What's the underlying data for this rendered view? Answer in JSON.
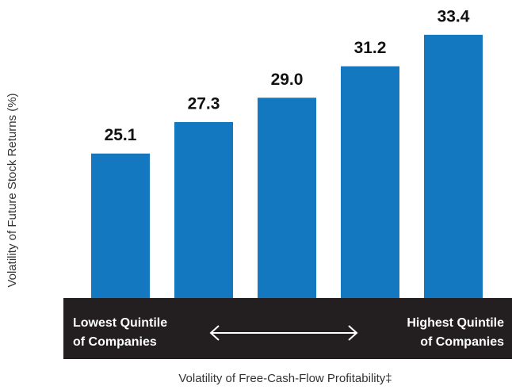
{
  "chart_data": {
    "type": "bar",
    "x_label": "Volatility of Free-Cash-Flow Profitability‡",
    "y_label": "Volatility of Future Stock Returns (%)",
    "categories": [
      null,
      null,
      null,
      null,
      null
    ],
    "values": [
      25.1,
      27.3,
      29.0,
      31.2,
      33.4
    ],
    "value_labels": [
      "25.1",
      "27.3",
      "29.0",
      "31.2",
      "33.4"
    ],
    "color": "#1478c0",
    "ylim": [
      15,
      35
    ],
    "annotations": {
      "left": [
        "Lowest Quintile",
        "of Companies"
      ],
      "right": [
        "Highest Quintile",
        "of Companies"
      ]
    }
  }
}
